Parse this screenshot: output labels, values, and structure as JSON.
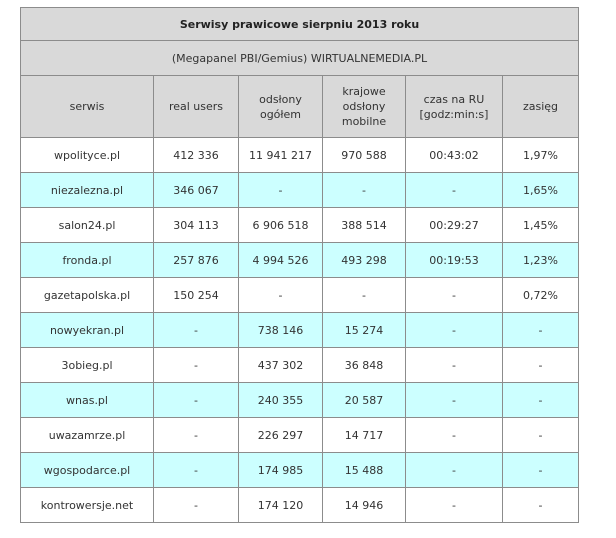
{
  "title": "Serwisy prawicowe sierpniu 2013 roku",
  "subtitle": "(Megapanel PBI/Gemius) WIRTUALNEMEDIA.PL",
  "columns": [
    "serwis",
    "real users",
    "odsłony ogółem",
    "krajowe odsłony mobilne",
    "czas na RU [godz:min:s]",
    "zasięg"
  ],
  "rows": [
    [
      "wpolityce.pl",
      "412 336",
      "11 941 217",
      "970 588",
      "00:43:02",
      "1,97%"
    ],
    [
      "niezalezna.pl",
      "346 067",
      "-",
      "-",
      "-",
      "1,65%"
    ],
    [
      "salon24.pl",
      "304 113",
      "6 906 518",
      "388 514",
      "00:29:27",
      "1,45%"
    ],
    [
      "fronda.pl",
      "257 876",
      "4 994 526",
      "493 298",
      "00:19:53",
      "1,23%"
    ],
    [
      "gazetapolska.pl",
      "150 254",
      "-",
      "-",
      "-",
      "0,72%"
    ],
    [
      "nowyekran.pl",
      "-",
      "738 146",
      "15 274",
      "-",
      "-"
    ],
    [
      "3obieg.pl",
      "-",
      "437 302",
      "36 848",
      "-",
      "-"
    ],
    [
      "wnas.pl",
      "-",
      "240 355",
      "20 587",
      "-",
      "-"
    ],
    [
      "uwazamrze.pl",
      "-",
      "226 297",
      "14 717",
      "-",
      "-"
    ],
    [
      "wgospodarce.pl",
      "-",
      "174 985",
      "15 488",
      "-",
      "-"
    ],
    [
      "kontrowersje.net",
      "-",
      "174 120",
      "14 946",
      "-",
      "-"
    ]
  ],
  "colors": {
    "header_bg": "#d9d9d9",
    "row_alt_bg": "#ccffff",
    "row_bg": "#ffffff",
    "border": "#8c8c8c"
  }
}
